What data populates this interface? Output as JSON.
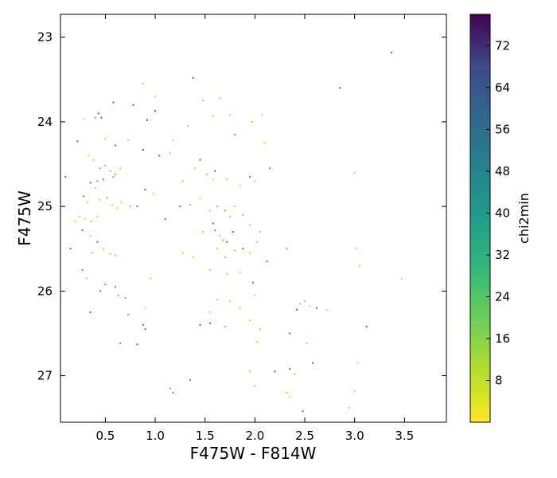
{
  "chart_data": {
    "type": "scatter",
    "title": "",
    "xlabel": "F475W - F814W",
    "ylabel": "F475W",
    "xlim": [
      0.05,
      3.92
    ],
    "ylim": [
      27.55,
      22.73
    ],
    "y_inverted": true,
    "xticks": [
      0.5,
      1.0,
      1.5,
      2.0,
      2.5,
      3.0,
      3.5
    ],
    "xtick_labels": [
      "0.5",
      "1.0",
      "1.5",
      "2.0",
      "2.5",
      "3.0",
      "3.5"
    ],
    "yticks": [
      23,
      24,
      25,
      26,
      27
    ],
    "ytick_labels": [
      "23",
      "24",
      "25",
      "26",
      "27"
    ],
    "grid": false,
    "colorbar": {
      "label": "chi2min",
      "colormap": "viridis",
      "range": [
        0,
        78
      ],
      "ticks": [
        8,
        16,
        24,
        32,
        40,
        48,
        56,
        64,
        72
      ],
      "tick_labels": [
        "8",
        "16",
        "24",
        "32",
        "40",
        "48",
        "56",
        "64",
        "72"
      ]
    },
    "points": [
      [
        3.37,
        23.18,
        45
      ],
      [
        2.85,
        23.6,
        55
      ],
      [
        1.38,
        23.48,
        50
      ],
      [
        0.88,
        23.55,
        10
      ],
      [
        1.0,
        23.7,
        6
      ],
      [
        1.48,
        23.75,
        15
      ],
      [
        1.65,
        23.72,
        6
      ],
      [
        0.58,
        23.77,
        50
      ],
      [
        0.78,
        23.8,
        58
      ],
      [
        1.0,
        23.87,
        52
      ],
      [
        0.43,
        23.9,
        55
      ],
      [
        0.46,
        23.95,
        60
      ],
      [
        0.4,
        23.95,
        20
      ],
      [
        0.28,
        23.97,
        6
      ],
      [
        0.92,
        23.98,
        55
      ],
      [
        1.33,
        24.05,
        12
      ],
      [
        1.58,
        23.93,
        10
      ],
      [
        1.75,
        23.92,
        8
      ],
      [
        1.97,
        24.0,
        10
      ],
      [
        2.07,
        23.92,
        5
      ],
      [
        0.22,
        24.23,
        45
      ],
      [
        0.5,
        24.2,
        6
      ],
      [
        0.6,
        24.28,
        55
      ],
      [
        0.73,
        24.22,
        8
      ],
      [
        0.88,
        24.33,
        50
      ],
      [
        1.04,
        24.4,
        40
      ],
      [
        1.15,
        24.37,
        12
      ],
      [
        1.18,
        24.22,
        10
      ],
      [
        1.8,
        24.15,
        35
      ],
      [
        2.1,
        24.25,
        8
      ],
      [
        0.33,
        24.4,
        5
      ],
      [
        0.38,
        24.45,
        12
      ],
      [
        0.45,
        24.55,
        18
      ],
      [
        0.5,
        24.52,
        20
      ],
      [
        0.55,
        24.58,
        14
      ],
      [
        0.6,
        24.62,
        22
      ],
      [
        0.65,
        24.55,
        10
      ],
      [
        0.42,
        24.7,
        25
      ],
      [
        0.48,
        24.68,
        35
      ],
      [
        0.58,
        24.65,
        24
      ],
      [
        0.35,
        24.72,
        50
      ],
      [
        0.4,
        24.78,
        8
      ],
      [
        0.28,
        24.88,
        40
      ],
      [
        0.32,
        24.95,
        6
      ],
      [
        0.44,
        24.92,
        12
      ],
      [
        0.52,
        24.9,
        18
      ],
      [
        0.57,
        24.98,
        6
      ],
      [
        0.62,
        25.02,
        5
      ],
      [
        0.66,
        24.95,
        10
      ],
      [
        0.75,
        25.0,
        14
      ],
      [
        0.82,
        25.0,
        45
      ],
      [
        0.9,
        24.8,
        50
      ],
      [
        0.24,
        25.12,
        6
      ],
      [
        0.3,
        25.15,
        4
      ],
      [
        0.36,
        25.18,
        12
      ],
      [
        0.42,
        25.12,
        7
      ],
      [
        0.27,
        25.28,
        48
      ],
      [
        0.35,
        25.35,
        6
      ],
      [
        0.42,
        25.42,
        35
      ],
      [
        0.48,
        25.5,
        8
      ],
      [
        0.55,
        25.56,
        10
      ],
      [
        0.6,
        25.58,
        14
      ],
      [
        0.37,
        25.55,
        12
      ],
      [
        0.15,
        25.5,
        50
      ],
      [
        0.27,
        25.75,
        30
      ],
      [
        0.31,
        25.85,
        10
      ],
      [
        0.5,
        25.92,
        24
      ],
      [
        0.6,
        25.95,
        28
      ],
      [
        0.45,
        26.0,
        42
      ],
      [
        0.63,
        26.05,
        20
      ],
      [
        0.7,
        26.08,
        18
      ],
      [
        0.35,
        26.25,
        50
      ],
      [
        0.73,
        26.28,
        28
      ],
      [
        0.9,
        26.2,
        5
      ],
      [
        0.88,
        26.4,
        45
      ],
      [
        0.9,
        26.45,
        52
      ],
      [
        0.65,
        26.62,
        30
      ],
      [
        0.82,
        26.63,
        50
      ],
      [
        1.28,
        24.7,
        10
      ],
      [
        1.4,
        24.55,
        6
      ],
      [
        1.45,
        24.45,
        40
      ],
      [
        1.52,
        24.62,
        12
      ],
      [
        1.58,
        24.68,
        5
      ],
      [
        1.6,
        24.58,
        45
      ],
      [
        1.72,
        24.68,
        10
      ],
      [
        1.85,
        24.75,
        8
      ],
      [
        1.95,
        24.65,
        35
      ],
      [
        2.0,
        24.7,
        5
      ],
      [
        2.15,
        24.55,
        30
      ],
      [
        1.25,
        25.0,
        42
      ],
      [
        1.35,
        24.98,
        12
      ],
      [
        1.45,
        24.9,
        6
      ],
      [
        1.55,
        25.05,
        8
      ],
      [
        1.62,
        25.0,
        14
      ],
      [
        1.7,
        25.05,
        20
      ],
      [
        1.75,
        25.12,
        6
      ],
      [
        1.8,
        25.0,
        10
      ],
      [
        1.88,
        25.1,
        16
      ],
      [
        1.95,
        25.22,
        8
      ],
      [
        2.05,
        25.3,
        12
      ],
      [
        1.48,
        25.3,
        10
      ],
      [
        1.58,
        25.2,
        45
      ],
      [
        1.6,
        25.28,
        30
      ],
      [
        1.65,
        25.35,
        12
      ],
      [
        1.68,
        25.4,
        18
      ],
      [
        1.72,
        25.42,
        48
      ],
      [
        1.78,
        25.3,
        40
      ],
      [
        1.62,
        25.5,
        8
      ],
      [
        1.7,
        25.6,
        14
      ],
      [
        1.8,
        25.52,
        10
      ],
      [
        1.88,
        25.5,
        45
      ],
      [
        1.95,
        25.55,
        6
      ],
      [
        2.02,
        25.42,
        12
      ],
      [
        2.12,
        25.65,
        40
      ],
      [
        2.32,
        25.5,
        25
      ],
      [
        1.38,
        25.6,
        6
      ],
      [
        1.28,
        25.55,
        8
      ],
      [
        1.55,
        25.75,
        10
      ],
      [
        1.72,
        25.8,
        12
      ],
      [
        1.85,
        25.78,
        5
      ],
      [
        1.98,
        25.9,
        40
      ],
      [
        2.0,
        26.05,
        8
      ],
      [
        1.62,
        26.1,
        12
      ],
      [
        1.75,
        26.12,
        6
      ],
      [
        1.85,
        26.2,
        10
      ],
      [
        1.55,
        26.25,
        5
      ],
      [
        1.45,
        26.4,
        50
      ],
      [
        1.55,
        26.38,
        45
      ],
      [
        1.7,
        26.42,
        12
      ],
      [
        1.95,
        26.35,
        8
      ],
      [
        2.05,
        26.45,
        10
      ],
      [
        2.45,
        26.15,
        12
      ],
      [
        2.5,
        26.12,
        10
      ],
      [
        2.55,
        26.18,
        6
      ],
      [
        2.42,
        26.22,
        50
      ],
      [
        2.62,
        26.2,
        45
      ],
      [
        2.72,
        26.22,
        5
      ],
      [
        2.35,
        26.5,
        42
      ],
      [
        2.52,
        26.62,
        10
      ],
      [
        2.02,
        26.6,
        8
      ],
      [
        1.95,
        26.95,
        8
      ],
      [
        2.0,
        27.12,
        10
      ],
      [
        2.2,
        26.95,
        55
      ],
      [
        2.35,
        26.92,
        48
      ],
      [
        2.4,
        26.98,
        10
      ],
      [
        2.58,
        26.85,
        50
      ],
      [
        2.32,
        27.2,
        12
      ],
      [
        2.35,
        27.25,
        8
      ],
      [
        2.48,
        27.42,
        45
      ],
      [
        2.95,
        27.38,
        6
      ],
      [
        3.0,
        27.18,
        8
      ],
      [
        3.03,
        26.85,
        10
      ],
      [
        1.35,
        27.05,
        35
      ],
      [
        1.15,
        27.15,
        22
      ],
      [
        1.18,
        27.2,
        28
      ],
      [
        3.0,
        24.6,
        6
      ],
      [
        3.02,
        25.5,
        5
      ],
      [
        3.05,
        25.7,
        8
      ],
      [
        3.47,
        25.85,
        10
      ],
      [
        3.12,
        26.42,
        45
      ],
      [
        0.1,
        24.65,
        40
      ],
      [
        0.2,
        25.18,
        10
      ],
      [
        0.95,
        25.85,
        8
      ],
      [
        1.1,
        25.15,
        40
      ],
      [
        0.98,
        24.85,
        10
      ]
    ]
  }
}
